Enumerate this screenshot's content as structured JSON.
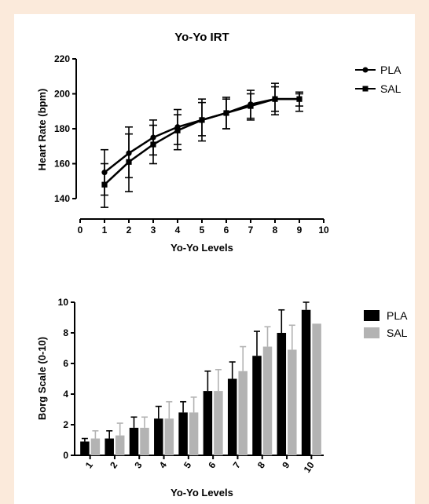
{
  "chart_data": [
    {
      "type": "line",
      "title": "Yo-Yo IRT",
      "xlabel": "Yo-Yo Levels",
      "ylabel": "Heart Rate (bpm)",
      "xlim": [
        0,
        10
      ],
      "ylim": [
        135,
        220
      ],
      "xticks": [
        "0",
        "1",
        "2",
        "3",
        "4",
        "5",
        "6",
        "7",
        "8",
        "9",
        "10"
      ],
      "yticks": [
        "140",
        "160",
        "180",
        "200",
        "220"
      ],
      "x": [
        1,
        2,
        3,
        4,
        5,
        6,
        7,
        8,
        9
      ],
      "legend_position": "top-right",
      "series": [
        {
          "name": "PLA",
          "marker": "circle",
          "values": [
            155,
            166,
            175,
            181,
            185,
            189,
            194,
            197,
            197
          ],
          "err_high": [
            168,
            181,
            185,
            191,
            197,
            198,
            202,
            206,
            201
          ],
          "err_low": [
            142,
            152,
            165,
            171,
            173,
            180,
            186,
            188,
            193
          ]
        },
        {
          "name": "SAL",
          "marker": "square",
          "values": [
            148,
            161,
            171,
            179,
            185,
            189,
            193,
            197,
            197
          ],
          "err_high": [
            160,
            177,
            182,
            188,
            195,
            197,
            200,
            204,
            200
          ],
          "err_low": [
            135,
            144,
            160,
            168,
            176,
            180,
            185,
            190,
            190
          ]
        }
      ]
    },
    {
      "type": "bar",
      "title": "",
      "xlabel": "Yo-Yo Levels",
      "ylabel": "Borg Scale (0-10)",
      "ylim": [
        0,
        10
      ],
      "yticks": [
        "0",
        "2",
        "4",
        "6",
        "8",
        "10"
      ],
      "categories": [
        "1",
        "2",
        "3",
        "4",
        "5",
        "6",
        "7",
        "8",
        "9",
        "10"
      ],
      "legend_position": "top-right",
      "series": [
        {
          "name": "PLA",
          "color": "#000000",
          "values": [
            0.9,
            1.1,
            1.8,
            2.4,
            2.8,
            4.2,
            5.0,
            6.5,
            8.0,
            9.5
          ],
          "err_high": [
            1.1,
            1.6,
            2.5,
            3.2,
            3.5,
            5.5,
            6.1,
            8.1,
            9.5,
            10.0
          ]
        },
        {
          "name": "SAL",
          "color": "#b3b3b3",
          "values": [
            1.1,
            1.3,
            1.8,
            2.4,
            2.8,
            4.2,
            5.5,
            7.1,
            6.9,
            8.6
          ],
          "err_high": [
            1.6,
            2.1,
            2.5,
            3.5,
            3.8,
            5.6,
            7.1,
            8.4,
            8.5,
            8.6
          ]
        }
      ]
    }
  ]
}
